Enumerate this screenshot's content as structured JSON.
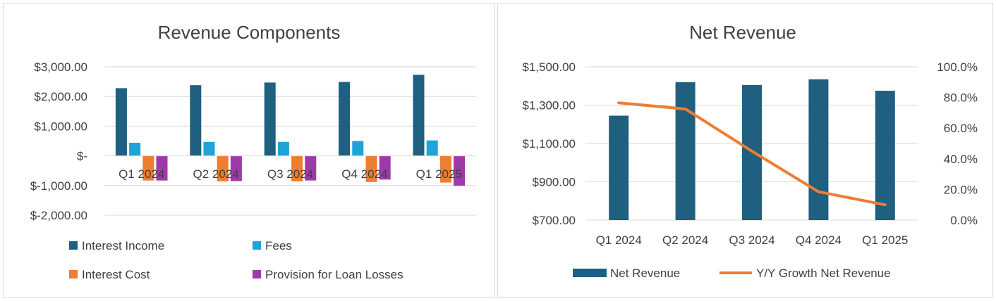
{
  "colors": {
    "interest_income": "#1f5f7f",
    "fees": "#20a3d6",
    "interest_cost": "#ed7d31",
    "provision": "#9e3aa8",
    "net_revenue": "#1f5f7f",
    "yy_growth": "#ed7d31",
    "gridline": "#d9d9d9",
    "text": "#404040"
  },
  "chart_data": [
    {
      "type": "bar",
      "title": "Revenue Components",
      "categories": [
        "Q1 2024",
        "Q2 2024",
        "Q3 2024",
        "Q4 2024",
        "Q1 2025"
      ],
      "series": [
        {
          "name": "Interest Income",
          "values": [
            2280,
            2380,
            2470,
            2490,
            2730
          ]
        },
        {
          "name": "Fees",
          "values": [
            440,
            470,
            470,
            500,
            520
          ]
        },
        {
          "name": "Interest Cost",
          "values": [
            -830,
            -860,
            -860,
            -880,
            -900
          ]
        },
        {
          "name": "Provision for Loan Losses",
          "values": [
            -830,
            -850,
            -830,
            -800,
            -1010
          ]
        }
      ],
      "ylim": [
        -2000,
        3000
      ],
      "yticks": [
        "$3,000.00",
        "$2,000.00",
        "$1,000.00",
        "$-",
        "$-1,000.00",
        "$-2,000.00"
      ],
      "grid": true,
      "legend_position": "bottom"
    },
    {
      "type": "bar+line",
      "title": "Net Revenue",
      "categories": [
        "Q1 2024",
        "Q2 2024",
        "Q3 2024",
        "Q4 2024",
        "Q1 2025"
      ],
      "series": [
        {
          "name": "Net Revenue",
          "type": "bar",
          "axis": "left",
          "values": [
            1245,
            1420,
            1405,
            1435,
            1375
          ]
        },
        {
          "name": "Y/Y Growth Net Revenue",
          "type": "line",
          "axis": "right",
          "values": [
            76.5,
            72.5,
            45.0,
            18.5,
            10.0
          ]
        }
      ],
      "ylim": [
        700,
        1500
      ],
      "yticks": [
        "$1,500.00",
        "$1,300.00",
        "$1,100.00",
        "$900.00",
        "$700.00"
      ],
      "y2lim": [
        0,
        100
      ],
      "y2ticks": [
        "100.0%",
        "80.0%",
        "60.0%",
        "40.0%",
        "20.0%",
        "0.0%"
      ],
      "grid": true,
      "legend_position": "bottom"
    }
  ]
}
